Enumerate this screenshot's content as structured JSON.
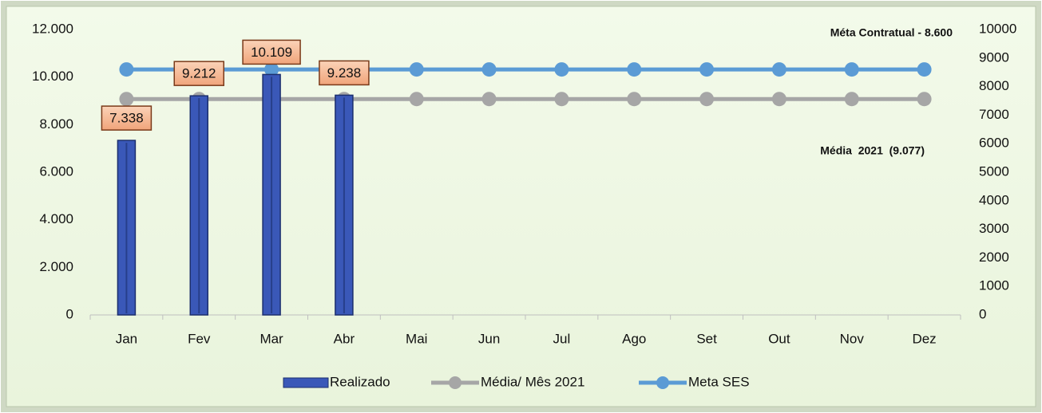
{
  "chart_data": {
    "type": "combo",
    "categories": [
      "Jan",
      "Fev",
      "Mar",
      "Abr",
      "Mai",
      "Jun",
      "Jul",
      "Ago",
      "Set",
      "Out",
      "Nov",
      "Dez"
    ],
    "series": [
      {
        "name": "Realizado",
        "type": "bar",
        "color": "#3a58b8",
        "values": [
          7338,
          9212,
          10109,
          9238,
          null,
          null,
          null,
          null,
          null,
          null,
          null,
          null
        ],
        "value_labels": [
          "7.338",
          "9.212",
          "10.109",
          "9.238",
          null,
          null,
          null,
          null,
          null,
          null,
          null,
          null
        ]
      },
      {
        "name": "Média/ Mês 2021",
        "type": "line",
        "color": "#a6a6a6",
        "values": [
          9077,
          9077,
          9077,
          9077,
          9077,
          9077,
          9077,
          9077,
          9077,
          9077,
          9077,
          9077
        ]
      },
      {
        "name": "Meta SES",
        "type": "line",
        "color": "#5b9bd5",
        "axis": "y2",
        "values": [
          8600,
          8600,
          8600,
          8600,
          8600,
          8600,
          8600,
          8600,
          8600,
          8600,
          8600,
          8600
        ]
      }
    ],
    "ylim": [
      0,
      12000
    ],
    "yticks": [
      0,
      {
        "value": 2000,
        "label": "2.000"
      },
      {
        "value": 4000,
        "label": "4.000"
      },
      {
        "value": 6000,
        "label": "6.000"
      },
      {
        "value": 8000,
        "label": "8.000"
      },
      {
        "value": 10000,
        "label": "10.000"
      },
      {
        "value": 12000,
        "label": "12.000"
      }
    ],
    "y2lim": [
      0,
      10000
    ],
    "y2ticks": [
      0,
      1000,
      2000,
      3000,
      4000,
      5000,
      6000,
      7000,
      8000,
      9000,
      10000
    ],
    "annotations": [
      "Méta Contratual - 8.600",
      "Média  2021  (9.077)"
    ],
    "grid": false,
    "legend": "bottom"
  }
}
